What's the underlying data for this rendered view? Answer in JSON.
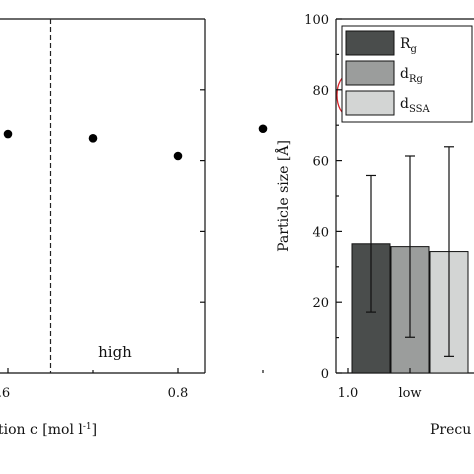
{
  "chart_data": [
    {
      "type": "scatter",
      "xlabel": "tion c [mol l",
      "xlabel_superscript": "-1",
      "xlabel_suffix": "]",
      "xlim": [
        0.52,
        1.08
      ],
      "ylim": [
        0,
        100
      ],
      "x_ticks": [
        {
          "value": 0.6,
          "label": ".6"
        },
        {
          "value": 0.8,
          "label": "0.8"
        },
        {
          "value": 1.0,
          "label": "1.0"
        }
      ],
      "y_ticks": [
        20,
        40,
        60,
        80
      ],
      "points": [
        {
          "x": 0.6,
          "y": 67.5
        },
        {
          "x": 0.7,
          "y": 66.3
        },
        {
          "x": 0.8,
          "y": 61.3
        },
        {
          "x": 0.9,
          "y": 69.0
        },
        {
          "x": 1.0,
          "y": 80.5
        },
        {
          "x": 1.0,
          "y": 76.5
        }
      ],
      "divider_x": 0.65,
      "region_label": "high",
      "highlight": {
        "x": 1.0,
        "y_range": [
          76.5,
          80.5
        ],
        "color": "#d9232a"
      },
      "marker_color": "#000000"
    },
    {
      "type": "bar",
      "ylabel": "Particle size [Å]",
      "xlabel": "Precu",
      "ylim": [
        0,
        100
      ],
      "y_ticks": [
        0,
        20,
        40,
        60,
        80,
        100
      ],
      "categories": [
        "low"
      ],
      "series": [
        {
          "name": "R",
          "sub": "g",
          "color": "#4a4d4c",
          "values": [
            36.5
          ],
          "error": [
            19.3
          ]
        },
        {
          "name": "d",
          "sub": "Rg",
          "color": "#9b9d9c",
          "values": [
            35.7
          ],
          "error": [
            25.6
          ]
        },
        {
          "name": "d",
          "sub": "SSA",
          "color": "#d3d5d4",
          "values": [
            34.3
          ],
          "error": [
            29.6
          ]
        }
      ],
      "legend_position": "top-left"
    }
  ]
}
